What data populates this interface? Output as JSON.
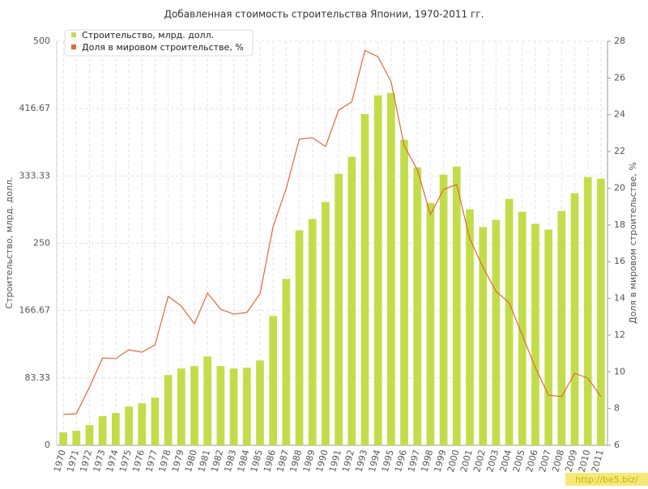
{
  "chart_data": {
    "type": "bar-line",
    "title": "Добавленная стоимость строительства Японии, 1970-2011 гг.",
    "y_label": "Строительство, млрд. долл.",
    "y2_label": "Доля в мировом строительстве, %",
    "watermark": "http://be5.biz/",
    "categories": [
      "1970",
      "1971",
      "1972",
      "1973",
      "1974",
      "1975",
      "1976",
      "1977",
      "1978",
      "1979",
      "1980",
      "1981",
      "1982",
      "1983",
      "1984",
      "1985",
      "1986",
      "1987",
      "1988",
      "1989",
      "1990",
      "1991",
      "1992",
      "1993",
      "1994",
      "1995",
      "1996",
      "1997",
      "1998",
      "1999",
      "2000",
      "2001",
      "2002",
      "2003",
      "2004",
      "2005",
      "2006",
      "2007",
      "2008",
      "2009",
      "2010",
      "2011"
    ],
    "series": [
      {
        "name": "Строительство, млрд. долл.",
        "type": "bar",
        "color": "#c3dd4a",
        "values": [
          16,
          18,
          25,
          36,
          40,
          48,
          52,
          59,
          87,
          95,
          98,
          110,
          98,
          95,
          96,
          105,
          160,
          206,
          266,
          280,
          301,
          336,
          357,
          410,
          433,
          436,
          378,
          344,
          300,
          335,
          345,
          292,
          270,
          279,
          305,
          289,
          274,
          267,
          290,
          312,
          332,
          330
        ]
      },
      {
        "name": "Доля в мировом строительстве, %",
        "type": "line",
        "axis": "y2",
        "color": "#e0683a",
        "values": [
          7.68,
          7.72,
          9.17,
          10.76,
          10.72,
          11.2,
          11.07,
          11.47,
          14.11,
          13.58,
          12.61,
          14.29,
          13.41,
          13.14,
          13.23,
          14.25,
          17.9,
          19.98,
          22.67,
          22.75,
          22.27,
          24.25,
          24.7,
          27.5,
          27.16,
          25.8,
          22.3,
          21.0,
          18.57,
          19.93,
          20.2,
          17.24,
          15.7,
          14.38,
          13.76,
          12.0,
          10.23,
          8.73,
          8.65,
          9.92,
          9.66,
          8.65
        ]
      }
    ],
    "ylim": [
      0,
      500
    ],
    "yticks": [
      0,
      {
        "value": 83.3333,
        "label": "83.33"
      },
      {
        "value": 166.6667,
        "label": "166.67"
      },
      250,
      {
        "value": 333.3333,
        "label": "333.33"
      },
      {
        "value": 416.6667,
        "label": "416.67"
      },
      500
    ],
    "y2lim": [
      6,
      28
    ],
    "y2ticks": [
      6,
      8,
      10,
      12,
      14,
      16,
      18,
      20,
      22,
      24,
      26,
      28
    ],
    "grid": true,
    "legend": "top-left"
  }
}
